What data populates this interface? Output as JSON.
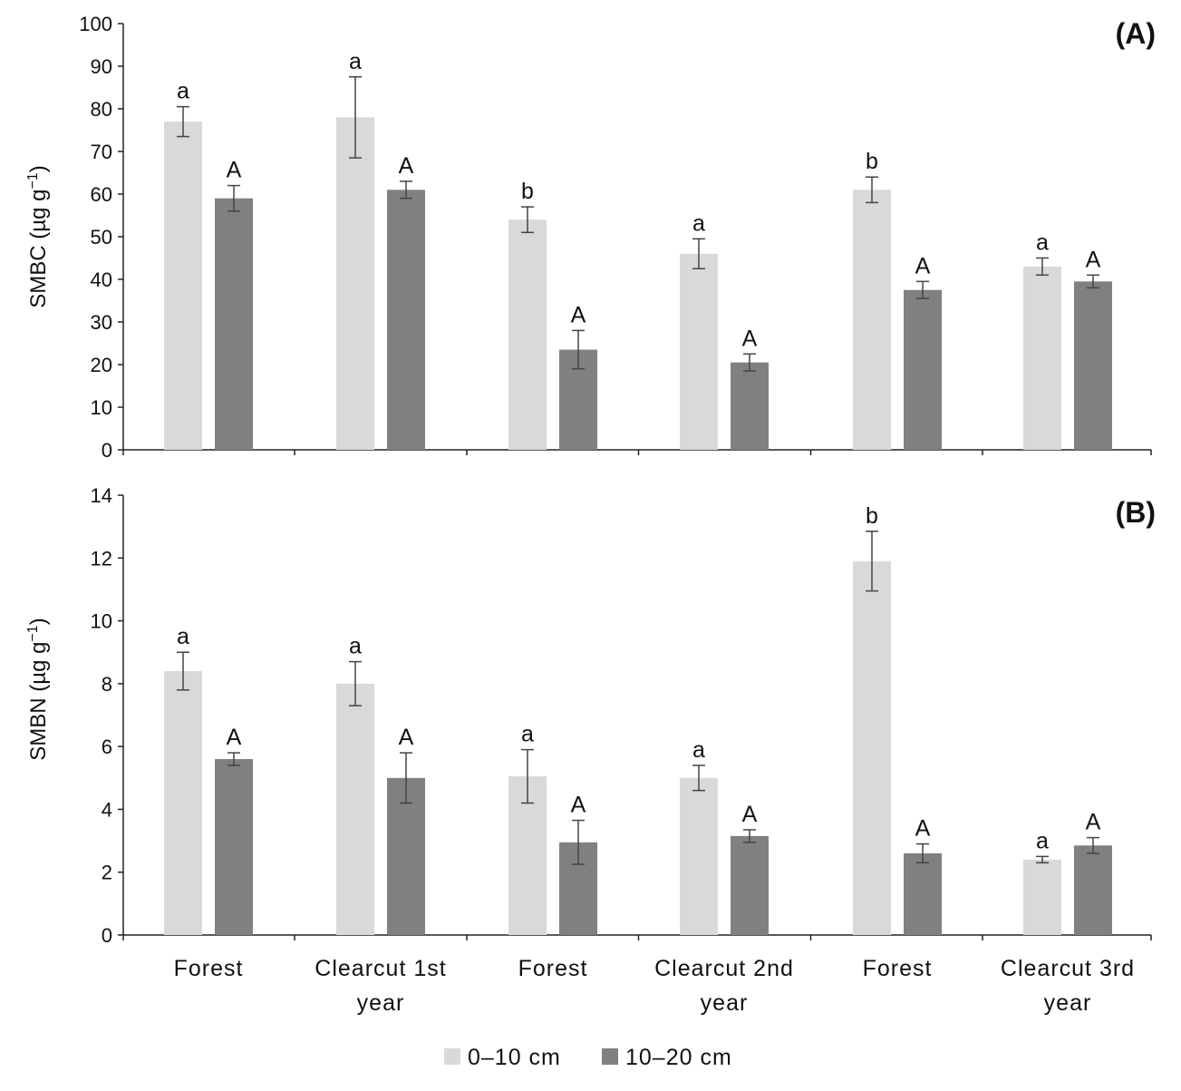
{
  "chart_data": [
    {
      "type": "bar",
      "panel_label": "(A)",
      "ylabel": "SMBC (µg g",
      "ylabel_sup": "−1",
      "ylabel_close": ")",
      "ylim": [
        0,
        100
      ],
      "yticks": [
        "0",
        "10",
        "20",
        "30",
        "40",
        "50",
        "60",
        "70",
        "80",
        "90",
        "100"
      ],
      "grid": false,
      "categories": [
        "Forest",
        "Clearcut 1st year",
        "Forest",
        "Clearcut 2nd year",
        "Forest",
        "Clearcut 3rd year"
      ],
      "series": [
        {
          "name": "0–10 cm",
          "color": "#d9d9d9",
          "values": [
            77,
            78,
            54,
            46,
            61,
            43
          ],
          "error": [
            3.5,
            9.5,
            3,
            3.5,
            3,
            2
          ],
          "letters": [
            "a",
            "a",
            "b",
            "a",
            "b",
            "a"
          ]
        },
        {
          "name": "10–20 cm",
          "color": "#808080",
          "values": [
            59,
            61,
            23.5,
            20.5,
            37.5,
            39.5
          ],
          "error": [
            3,
            2,
            4.5,
            2,
            2,
            1.5
          ],
          "letters": [
            "A",
            "A",
            "A",
            "A",
            "A",
            "A"
          ]
        }
      ]
    },
    {
      "type": "bar",
      "panel_label": "(B)",
      "ylabel": "SMBN (µg g",
      "ylabel_sup": "−1",
      "ylabel_close": ")",
      "ylim": [
        0,
        14
      ],
      "yticks": [
        "0",
        "2",
        "4",
        "6",
        "8",
        "10",
        "12",
        "14"
      ],
      "grid": false,
      "categories": [
        "Forest",
        "Clearcut 1st year",
        "Forest",
        "Clearcut 2nd year",
        "Forest",
        "Clearcut 3rd year"
      ],
      "series": [
        {
          "name": "0–10 cm",
          "color": "#d9d9d9",
          "values": [
            8.4,
            8.0,
            5.05,
            5.0,
            11.9,
            2.4
          ],
          "error": [
            0.6,
            0.7,
            0.85,
            0.4,
            0.95,
            0.1
          ],
          "letters": [
            "a",
            "a",
            "a",
            "a",
            "b",
            "a"
          ]
        },
        {
          "name": "10–20 cm",
          "color": "#808080",
          "values": [
            5.6,
            5.0,
            2.95,
            3.15,
            2.6,
            2.85
          ],
          "error": [
            0.2,
            0.8,
            0.7,
            0.2,
            0.3,
            0.25
          ],
          "letters": [
            "A",
            "A",
            "A",
            "A",
            "A",
            "A"
          ]
        }
      ]
    }
  ],
  "category_labels": [
    [
      "Forest"
    ],
    [
      "Clearcut 1st",
      "year"
    ],
    [
      "Forest"
    ],
    [
      "Clearcut 2nd",
      "year"
    ],
    [
      "Forest"
    ],
    [
      "Clearcut 3rd",
      "year"
    ]
  ],
  "legend": {
    "position": "bottom-center",
    "items": [
      {
        "label": "0–10 cm",
        "color": "#d9d9d9"
      },
      {
        "label": "10–20 cm",
        "color": "#808080"
      }
    ]
  }
}
